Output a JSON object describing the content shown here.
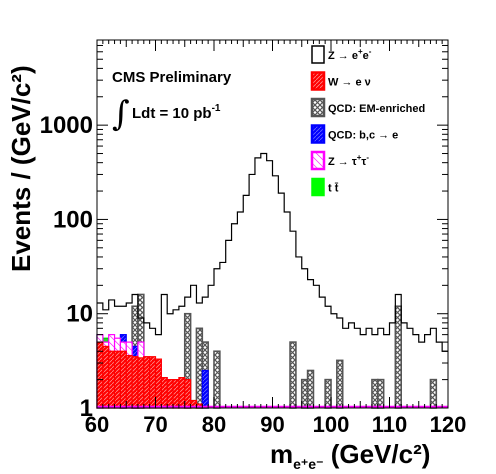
{
  "chart_data": {
    "type": "histogram",
    "title": "",
    "xlabel": "m",
    "xlabel_sub": "e⁺e⁻",
    "xlabel_unit": " (GeV/c²)",
    "ylabel": "Events / (GeV/c²)",
    "xlim": [
      60,
      120
    ],
    "ylim": [
      1,
      8000
    ],
    "yscale": "log",
    "grid": false,
    "legend_position": "top-right",
    "x_ticks": [
      "60",
      "70",
      "80",
      "90",
      "100",
      "110",
      "120"
    ],
    "y_ticks": [
      "1",
      "10",
      "100",
      "1000"
    ],
    "annotations": {
      "line1": "CMS Preliminary",
      "line2": "Ldt = 10 pb",
      "line2_sup": "-1"
    },
    "bin_edges_start": 60,
    "bin_width": 1,
    "series": [
      {
        "name": "Z → e⁺e⁻",
        "style": "line",
        "color": "#000000",
        "values": [
          13,
          11,
          14,
          12,
          12,
          13,
          16,
          9,
          8,
          7,
          6,
          16,
          10,
          11,
          12,
          15,
          20,
          13,
          15,
          20,
          30,
          35,
          60,
          90,
          120,
          180,
          300,
          450,
          500,
          420,
          290,
          190,
          120,
          75,
          40,
          30,
          23,
          20,
          15,
          12,
          10,
          9,
          7,
          8,
          7,
          6,
          7,
          6,
          7,
          6,
          8,
          16,
          8,
          7,
          6,
          5,
          6,
          7,
          5,
          4
        ]
      },
      {
        "name": "W → e ν",
        "style": "hatched",
        "color": "#ff0000",
        "values": [
          5,
          4.5,
          4,
          4,
          4,
          3.6,
          3.5,
          3.4,
          3.5,
          3.5,
          3.3,
          2.1,
          2,
          2,
          2.1,
          2,
          1.2,
          1.1,
          0,
          0,
          0,
          0,
          0,
          0,
          0,
          0,
          0,
          0,
          0,
          0,
          0,
          0,
          0,
          0,
          0,
          0,
          0,
          0,
          0,
          0,
          0,
          0,
          0,
          0,
          0,
          0,
          0,
          0,
          0,
          0,
          0,
          0,
          0,
          0,
          0,
          0,
          0,
          0,
          0,
          0
        ]
      },
      {
        "name": "QCD: EM-enriched",
        "style": "hatched",
        "color": "#555555",
        "values": [
          0,
          0,
          0,
          0,
          4,
          0,
          12,
          16,
          0,
          0,
          0,
          0,
          0,
          0,
          0,
          10,
          0,
          7,
          5,
          0,
          4,
          0,
          0,
          0,
          0,
          0,
          0,
          0,
          0,
          0,
          0,
          0,
          0,
          5,
          0,
          2,
          2.5,
          0,
          0,
          2,
          0,
          3.2,
          0,
          0,
          0,
          0,
          0,
          2,
          2,
          0,
          0,
          12,
          0,
          0,
          0,
          0,
          0,
          2,
          0,
          0
        ]
      },
      {
        "name": "QCD: b,c → e",
        "style": "hatched",
        "color": "#0000ff",
        "values": [
          6,
          0,
          0,
          0,
          6,
          0,
          4.5,
          0,
          0,
          0,
          0,
          0,
          0,
          0,
          0,
          0,
          0,
          0,
          2.5,
          0,
          0,
          0,
          0,
          0,
          0,
          0,
          0,
          0,
          0,
          0,
          0,
          0,
          0,
          0,
          0,
          0,
          0,
          0,
          0,
          0,
          0,
          0,
          0,
          0,
          0,
          0,
          0,
          0,
          0,
          0,
          0,
          0,
          0,
          0,
          0,
          0,
          0,
          0,
          0,
          0
        ]
      },
      {
        "name": "Z → τ⁺τ⁻",
        "style": "hatched",
        "color": "#ff00ff",
        "values": [
          6,
          5,
          6,
          5.5,
          5,
          5,
          3.5,
          5,
          3.5,
          3.3,
          3.2,
          2.1,
          2,
          2,
          2,
          1.5,
          1,
          0,
          0,
          0,
          0,
          0,
          0,
          0,
          0,
          0,
          0,
          0,
          0,
          0,
          0,
          0,
          0,
          0,
          0,
          0,
          0,
          0,
          0,
          0,
          0,
          0,
          0,
          0,
          0,
          0,
          0,
          0,
          0,
          0,
          0,
          0,
          0,
          0,
          0,
          0,
          0,
          0,
          0,
          0
        ]
      },
      {
        "name": "t t̄",
        "style": "hatched",
        "color": "#00ff00",
        "values": [
          6,
          5.5,
          5,
          4.5,
          4,
          3.5,
          3.2,
          3,
          2.8,
          2.6,
          2.3,
          2,
          1.8,
          1.7,
          1.6,
          1.4,
          1.2,
          1.1,
          0,
          0,
          0,
          0,
          0,
          0,
          0,
          0,
          0,
          0,
          0,
          0,
          0,
          0,
          0,
          0,
          0,
          0,
          0,
          0,
          0,
          0,
          0,
          0,
          0,
          0,
          0,
          0,
          0,
          0,
          0,
          0,
          0,
          0,
          0,
          0,
          0,
          0,
          0,
          0,
          0,
          0
        ]
      }
    ]
  },
  "legend": {
    "items": [
      {
        "label": "Z → e",
        "sup": "+",
        "rest": "e",
        "sup2": "-",
        "swatch": "line",
        "color": "#000000"
      },
      {
        "label": "W → e ν",
        "swatch": "hatch",
        "color": "#ff0000"
      },
      {
        "label": "QCD: EM-enriched",
        "swatch": "hatch",
        "color": "#555555"
      },
      {
        "label": "QCD: b,c → e",
        "swatch": "hatch",
        "color": "#0000ff"
      },
      {
        "label": "Z → τ",
        "sup": "+",
        "rest": "τ",
        "sup2": "-",
        "swatch": "hatch",
        "color": "#ff00ff"
      },
      {
        "label": "t t̄",
        "swatch": "solid",
        "color": "#00ff00"
      }
    ]
  }
}
